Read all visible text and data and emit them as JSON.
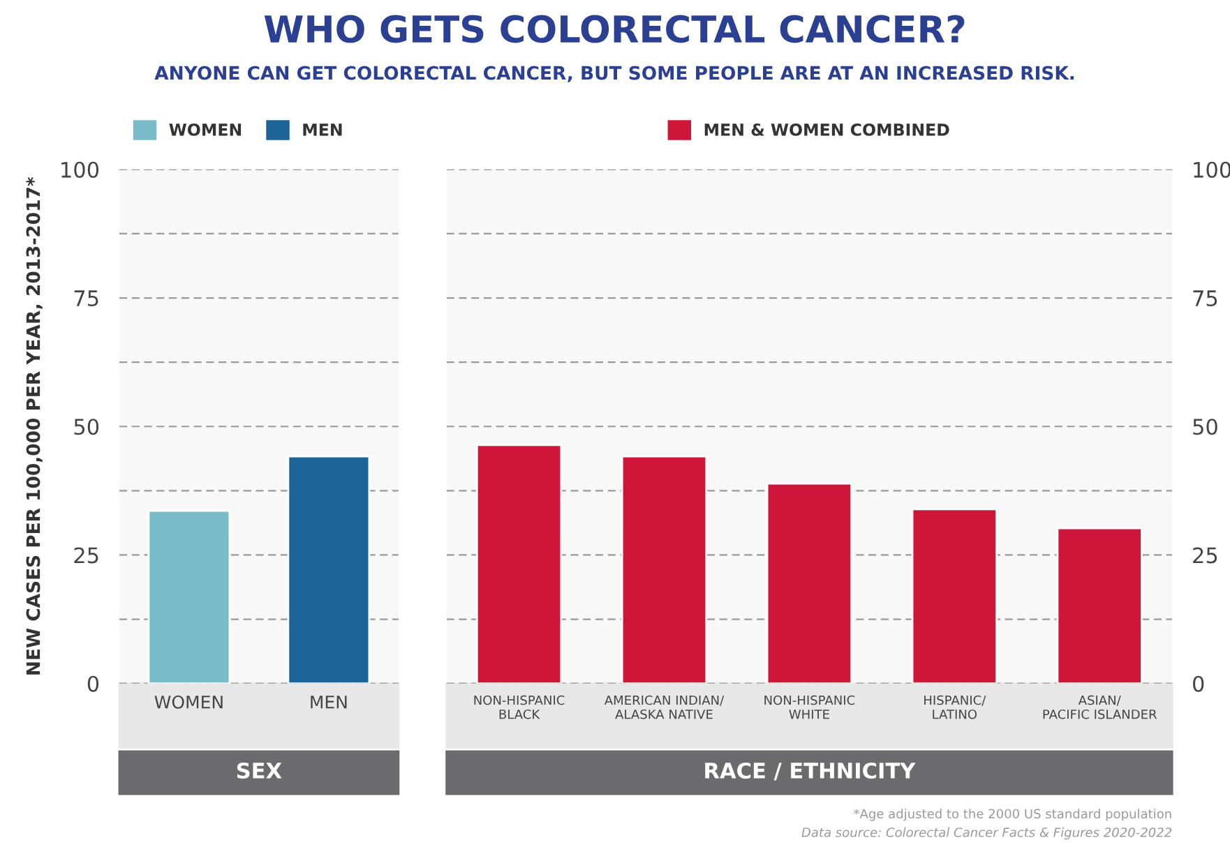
{
  "chart_data": [
    {
      "type": "bar",
      "title": "WHO GETS COLORECTAL CANCER?",
      "subtitle": "ANYONE CAN GET COLORECTAL CANCER, BUT SOME PEOPLE ARE AT AN INCREASED RISK.",
      "ylabel": "NEW CASES PER 100,000 PER YEAR, 2013-2017*",
      "xlabel": "SEX",
      "categories": [
        "WOMEN",
        "MEN"
      ],
      "series": [
        {
          "name": "WOMEN",
          "color": "#7bbccb",
          "values": [
            33.6,
            null
          ]
        },
        {
          "name": "MEN",
          "color": "#1a6498",
          "values": [
            null,
            44.2
          ]
        }
      ],
      "ylim": [
        0,
        100
      ],
      "yticks": [
        0,
        {
          "value": 12.5,
          "label": null
        },
        25,
        {
          "value": 37.5,
          "label": null
        },
        50,
        {
          "value": 62.5,
          "label": null
        },
        75,
        {
          "value": 87.5,
          "label": null
        },
        100
      ],
      "grid": "y",
      "legend": "top left"
    },
    {
      "type": "bar",
      "xlabel": "RACE / ETHNICITY",
      "categories": [
        "NON-HISPANIC\nBLACK",
        "AMERICAN INDIAN/\nALASKA NATIVE",
        "NON-HISPANIC\nWHITE",
        "HISPANIC/\nLATINO",
        "ASIAN/\nPACIFIC ISLANDER"
      ],
      "series": [
        {
          "name": "MEN & WOMEN COMBINED",
          "color": "#d0173a",
          "axis": "y2",
          "values": [
            46.4,
            44.2,
            38.9,
            33.9,
            30.2
          ]
        }
      ],
      "y2lim": [
        0,
        100
      ],
      "y2ticks": [
        0,
        {
          "value": 12.5,
          "label": null
        },
        25,
        {
          "value": 37.5,
          "label": null
        },
        50,
        {
          "value": 62.5,
          "label": null
        },
        75,
        {
          "value": 87.5,
          "label": null
        },
        100
      ],
      "grid": "y",
      "legend": "top",
      "annotations": [
        "*Age adjusted to the 2000 US standard population",
        "Data source: Colorectal Cancer Facts & Figures 2020-2022"
      ]
    }
  ]
}
